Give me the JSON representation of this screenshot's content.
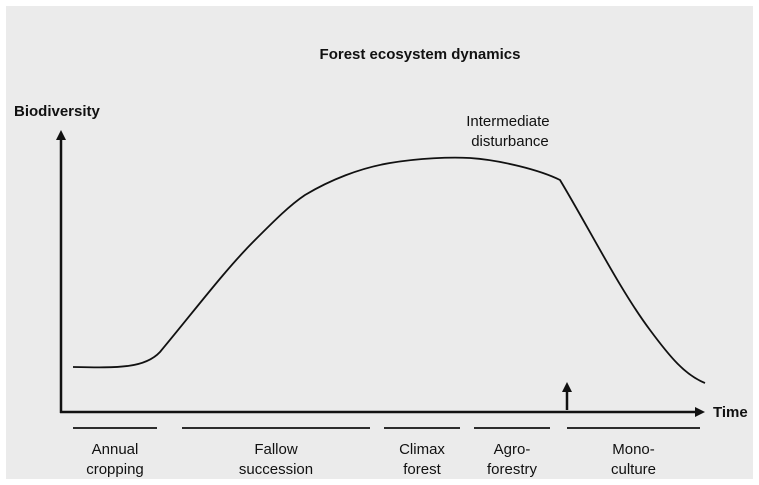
{
  "title": "Forest ecosystem dynamics",
  "y_axis_label": "Biodiversity",
  "x_axis_label": "Time",
  "annotation": {
    "lines": [
      "Intermediate",
      "disturbance"
    ]
  },
  "phases": [
    {
      "lines": [
        "Annual",
        "cropping"
      ]
    },
    {
      "lines": [
        "Fallow",
        "succession"
      ]
    },
    {
      "lines": [
        "Climax",
        "forest"
      ]
    },
    {
      "lines": [
        "Agro-",
        "forestry"
      ]
    },
    {
      "lines": [
        "Mono-",
        "culture"
      ]
    }
  ]
}
